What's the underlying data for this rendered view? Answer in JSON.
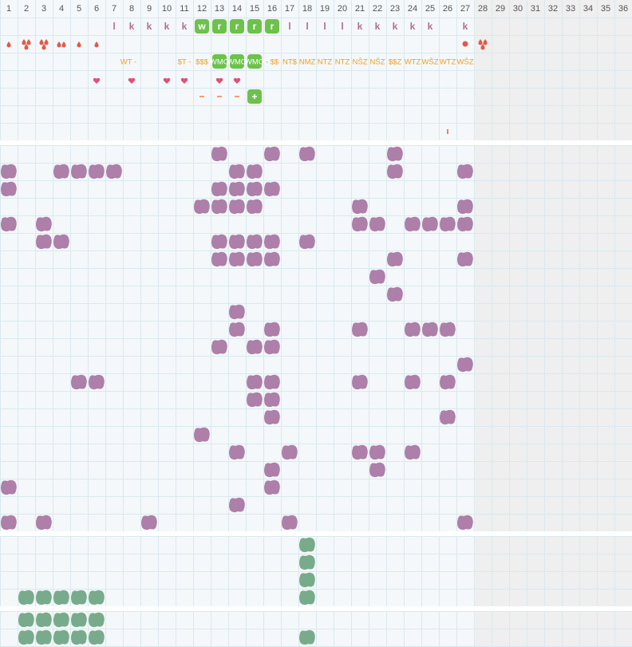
{
  "columns": [
    1,
    2,
    3,
    4,
    5,
    6,
    7,
    8,
    9,
    10,
    11,
    12,
    13,
    14,
    15,
    16,
    17,
    18,
    19,
    20,
    21,
    22,
    23,
    24,
    25,
    26,
    27,
    28,
    29,
    30,
    31,
    32,
    33,
    34,
    35,
    36
  ],
  "rows": {
    "letters": [
      null,
      null,
      null,
      null,
      null,
      null,
      "l",
      "k",
      "k",
      "k",
      "k",
      "w",
      "r",
      "r",
      "r",
      "r",
      "l",
      "l",
      "l",
      "l",
      "k",
      "k",
      "k",
      "k",
      "k",
      null,
      "k",
      null,
      null,
      null,
      null,
      null,
      null,
      null,
      null,
      null
    ],
    "labels": [
      null,
      null,
      null,
      null,
      null,
      null,
      null,
      "WT -",
      null,
      null,
      "$T -",
      "$$$",
      "WMO",
      "WMO",
      "WMO",
      "- $$",
      "NT$",
      "NMZ",
      "NTZ",
      "NTZ",
      "NŠZ",
      "NŠZ",
      "$$Z",
      "WTZ",
      "WŠZ",
      "WTZ",
      "WŠZ",
      null,
      null,
      null,
      null,
      null,
      null,
      null,
      null,
      null
    ]
  }
}
